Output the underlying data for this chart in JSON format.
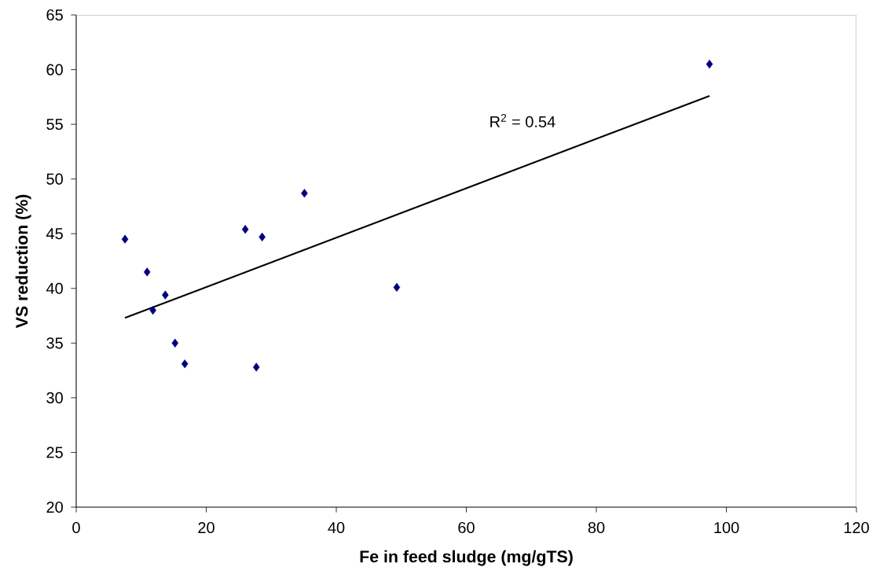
{
  "chart_data": {
    "type": "scatter",
    "xlabel": "Fe in feed sludge (mg/gTS)",
    "ylabel": "VS reduction (%)",
    "xlim": [
      0,
      120
    ],
    "xticks": [
      0,
      20,
      40,
      60,
      80,
      100,
      120
    ],
    "ylim": [
      20,
      65
    ],
    "yticks": [
      20,
      25,
      30,
      35,
      40,
      45,
      50,
      55,
      60,
      65
    ],
    "grid": false,
    "marker": "diamond",
    "series": [
      {
        "color": "#000080",
        "x": [
          7.5,
          10.9,
          11.8,
          13.7,
          15.2,
          16.7,
          26.0,
          27.7,
          28.6,
          35.1,
          49.3,
          97.4
        ],
        "values": [
          44.5,
          41.5,
          38.0,
          39.4,
          35.0,
          33.1,
          45.4,
          32.8,
          44.7,
          48.7,
          40.1,
          60.5
        ]
      },
      {
        "type": "line",
        "color": "#000000",
        "line_style": "solid",
        "marker": "none",
        "x": [
          7.5,
          97.4
        ],
        "values": [
          37.3,
          57.6
        ]
      }
    ],
    "annotations": [
      "R$^{2}$ = 0.54"
    ]
  }
}
